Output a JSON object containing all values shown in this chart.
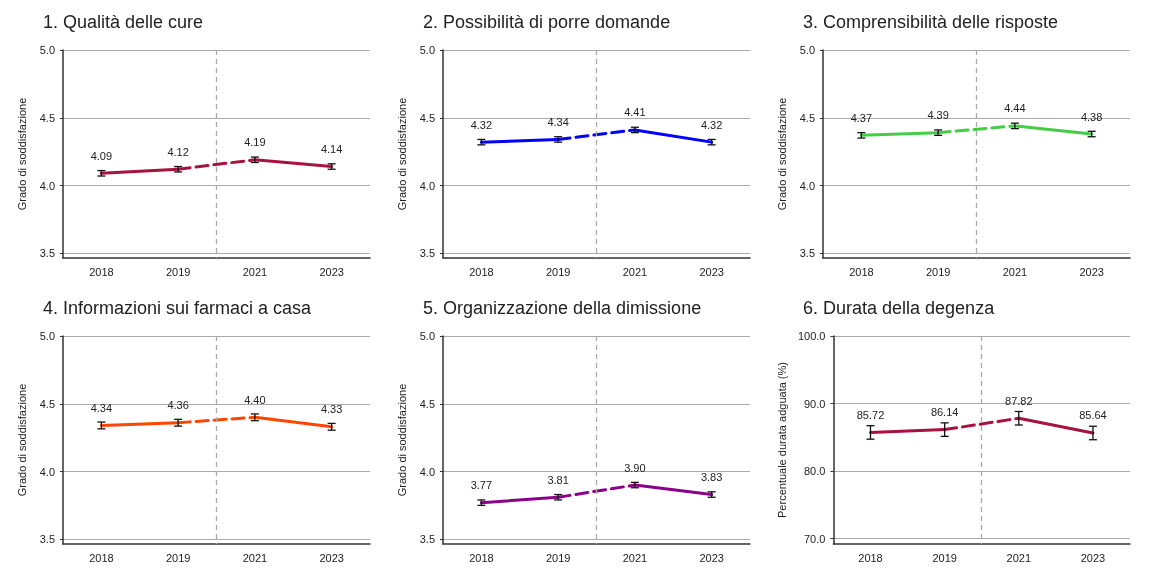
{
  "chart_data": [
    {
      "type": "line",
      "title": "1. Qualità delle cure",
      "ylabel": "Grado di soddisfazione",
      "categories": [
        "2018",
        "2019",
        "2021",
        "2023"
      ],
      "ylim": [
        3.465,
        5.0
      ],
      "yticks": [
        {
          "value": 3.5,
          "label": "3.5"
        },
        {
          "value": 4,
          "label": "4.0"
        },
        {
          "value": 4.5,
          "label": "4.5"
        },
        {
          "value": 5,
          "label": "5.0"
        }
      ],
      "grid": "y",
      "marker": "none",
      "series": [
        {
          "color": "#a8123e",
          "line_style": "solid",
          "values": [
            4.09,
            4.12,
            null,
            null
          ],
          "errors": [
            0.02,
            0.02,
            null,
            null
          ],
          "value_labels": [
            "4.09",
            "4.12",
            null,
            null
          ]
        },
        {
          "color": "#a8123e",
          "line_style": "dashed",
          "values": [
            null,
            4.12,
            4.19,
            null
          ]
        },
        {
          "color": "#a8123e",
          "line_style": "solid",
          "values": [
            null,
            null,
            4.19,
            4.14
          ],
          "errors": [
            null,
            null,
            0.02,
            0.02
          ],
          "value_labels": [
            null,
            null,
            "4.19",
            "4.14"
          ]
        }
      ]
    },
    {
      "type": "line",
      "title": "2. Possibilità di porre domande",
      "ylabel": "Grado di soddisfazione",
      "categories": [
        "2018",
        "2019",
        "2021",
        "2023"
      ],
      "ylim": [
        3.465,
        5.0
      ],
      "yticks": [
        {
          "value": 3.5,
          "label": "3.5"
        },
        {
          "value": 4,
          "label": "4.0"
        },
        {
          "value": 4.5,
          "label": "4.5"
        },
        {
          "value": 5,
          "label": "5.0"
        }
      ],
      "grid": "y",
      "marker": "none",
      "series": [
        {
          "color": "#0000ff",
          "line_style": "solid",
          "values": [
            4.32,
            4.34,
            null,
            null
          ],
          "errors": [
            0.02,
            0.02,
            null,
            null
          ],
          "value_labels": [
            "4.32",
            "4.34",
            null,
            null
          ]
        },
        {
          "color": "#0000ff",
          "line_style": "dashed",
          "values": [
            null,
            4.34,
            4.41,
            null
          ]
        },
        {
          "color": "#0000ff",
          "line_style": "solid",
          "values": [
            null,
            null,
            4.41,
            4.32
          ],
          "errors": [
            null,
            null,
            0.02,
            0.02
          ],
          "value_labels": [
            null,
            null,
            "4.41",
            "4.32"
          ]
        }
      ]
    },
    {
      "type": "line",
      "title": "3. Comprensibilità delle risposte",
      "ylabel": "Grado di soddisfazione",
      "categories": [
        "2018",
        "2019",
        "2021",
        "2023"
      ],
      "ylim": [
        3.465,
        5.0
      ],
      "yticks": [
        {
          "value": 3.5,
          "label": "3.5"
        },
        {
          "value": 4,
          "label": "4.0"
        },
        {
          "value": 4.5,
          "label": "4.5"
        },
        {
          "value": 5,
          "label": "5.0"
        }
      ],
      "grid": "y",
      "marker": "none",
      "series": [
        {
          "color": "#44cc44",
          "line_style": "solid",
          "values": [
            4.37,
            4.39,
            null,
            null
          ],
          "errors": [
            0.02,
            0.02,
            null,
            null
          ],
          "value_labels": [
            "4.37",
            "4.39",
            null,
            null
          ]
        },
        {
          "color": "#44cc44",
          "line_style": "dashed",
          "values": [
            null,
            4.39,
            4.44,
            null
          ]
        },
        {
          "color": "#44cc44",
          "line_style": "solid",
          "values": [
            null,
            null,
            4.44,
            4.38
          ],
          "errors": [
            null,
            null,
            0.02,
            0.02
          ],
          "value_labels": [
            null,
            null,
            "4.44",
            "4.38"
          ]
        }
      ]
    },
    {
      "type": "line",
      "title": "4. Informazioni sui farmaci a casa",
      "ylabel": "Grado di soddisfazione",
      "categories": [
        "2018",
        "2019",
        "2021",
        "2023"
      ],
      "ylim": [
        3.465,
        5.0
      ],
      "yticks": [
        {
          "value": 3.5,
          "label": "3.5"
        },
        {
          "value": 4,
          "label": "4.0"
        },
        {
          "value": 4.5,
          "label": "4.5"
        },
        {
          "value": 5,
          "label": "5.0"
        }
      ],
      "grid": "y",
      "marker": "none",
      "series": [
        {
          "color": "#ff4500",
          "line_style": "solid",
          "values": [
            4.34,
            4.36,
            null,
            null
          ],
          "errors": [
            0.025,
            0.025,
            null,
            null
          ],
          "value_labels": [
            "4.34",
            "4.36",
            null,
            null
          ]
        },
        {
          "color": "#ff4500",
          "line_style": "dashed",
          "values": [
            null,
            4.36,
            4.4,
            null
          ]
        },
        {
          "color": "#ff4500",
          "line_style": "solid",
          "values": [
            null,
            null,
            4.4,
            4.33
          ],
          "errors": [
            null,
            null,
            0.025,
            0.025
          ],
          "value_labels": [
            null,
            null,
            "4.40",
            "4.33"
          ]
        }
      ]
    },
    {
      "type": "line",
      "title": "5. Organizzazione della dimissione",
      "ylabel": "Grado di soddisfazione",
      "categories": [
        "2018",
        "2019",
        "2021",
        "2023"
      ],
      "ylim": [
        3.465,
        5.0
      ],
      "yticks": [
        {
          "value": 3.5,
          "label": "3.5"
        },
        {
          "value": 4,
          "label": "4.0"
        },
        {
          "value": 4.5,
          "label": "4.5"
        },
        {
          "value": 5,
          "label": "5.0"
        }
      ],
      "grid": "y",
      "marker": "none",
      "series": [
        {
          "color": "#8b008b",
          "line_style": "solid",
          "values": [
            3.77,
            3.81,
            null,
            null
          ],
          "errors": [
            0.02,
            0.02,
            null,
            null
          ],
          "value_labels": [
            "3.77",
            "3.81",
            null,
            null
          ]
        },
        {
          "color": "#8b008b",
          "line_style": "dashed",
          "values": [
            null,
            3.81,
            3.9,
            null
          ]
        },
        {
          "color": "#8b008b",
          "line_style": "solid",
          "values": [
            null,
            null,
            3.9,
            3.83
          ],
          "errors": [
            null,
            null,
            0.02,
            0.02
          ],
          "value_labels": [
            null,
            null,
            "3.90",
            "3.83"
          ]
        }
      ]
    },
    {
      "type": "line",
      "title": "6. Durata della degenza",
      "ylabel": "Percentuale durata adguata (%)",
      "categories": [
        "2018",
        "2019",
        "2021",
        "2023"
      ],
      "ylim": [
        69.2,
        100
      ],
      "yticks": [
        {
          "value": 70,
          "label": "70.0"
        },
        {
          "value": 80,
          "label": "80.0"
        },
        {
          "value": 90,
          "label": "90.0"
        },
        {
          "value": 100,
          "label": "100.0"
        }
      ],
      "grid": "y",
      "marker": "none",
      "series": [
        {
          "color": "#a8123e",
          "line_style": "solid",
          "values": [
            85.72,
            86.14,
            null,
            null
          ],
          "errors": [
            1.0,
            1.0,
            null,
            null
          ],
          "value_labels": [
            "85.72",
            "86.14",
            null,
            null
          ]
        },
        {
          "color": "#a8123e",
          "line_style": "dashed",
          "values": [
            null,
            86.14,
            87.82,
            null
          ]
        },
        {
          "color": "#a8123e",
          "line_style": "solid",
          "values": [
            null,
            null,
            87.82,
            85.64
          ],
          "errors": [
            null,
            null,
            1.0,
            1.0
          ],
          "value_labels": [
            null,
            null,
            "87.82",
            "85.64"
          ]
        }
      ]
    }
  ]
}
